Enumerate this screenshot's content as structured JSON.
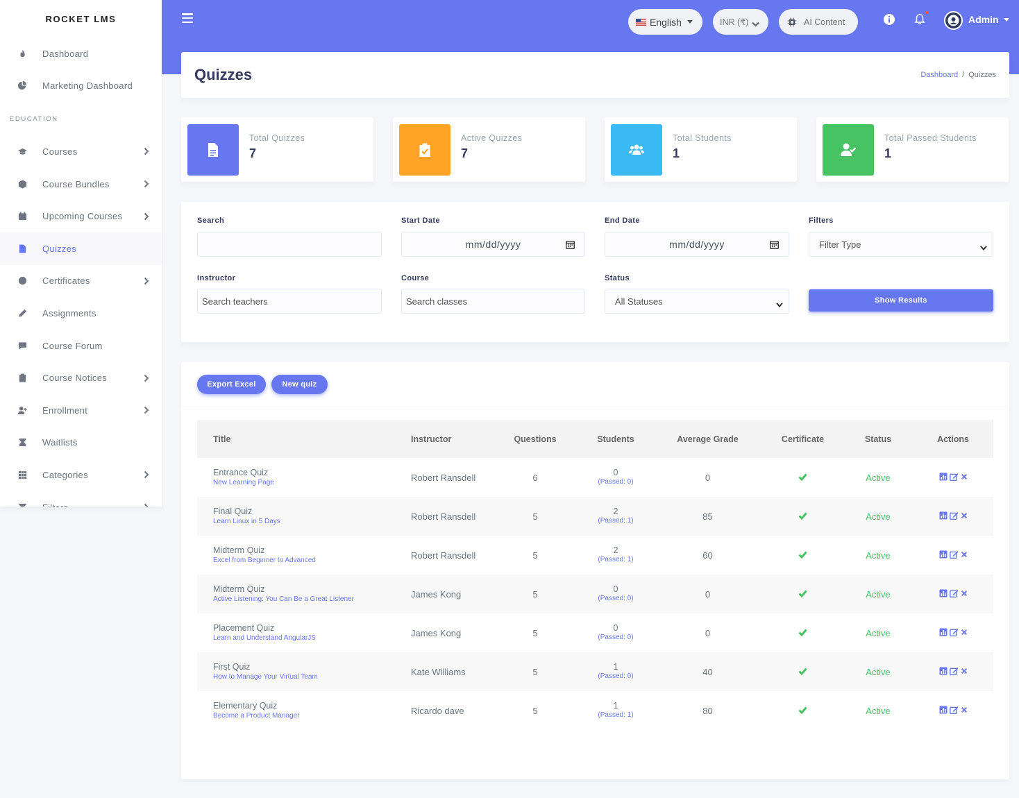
{
  "brand": "ROCKET LMS",
  "sidebar": {
    "top_items": [
      {
        "label": "Dashboard",
        "icon": "fire-icon"
      },
      {
        "label": "Marketing Dashboard",
        "icon": "chart-pie-icon"
      }
    ],
    "section_header": "EDUCATION",
    "items": [
      {
        "label": "Courses",
        "icon": "graduation-cap-icon",
        "has_children": true
      },
      {
        "label": "Course Bundles",
        "icon": "cube-icon",
        "has_children": true
      },
      {
        "label": "Upcoming Courses",
        "icon": "calendar-icon",
        "has_children": true
      },
      {
        "label": "Quizzes",
        "icon": "file-icon",
        "active": true
      },
      {
        "label": "Certificates",
        "icon": "certificate-icon",
        "has_children": true
      },
      {
        "label": "Assignments",
        "icon": "pen-icon"
      },
      {
        "label": "Course Forum",
        "icon": "comment-icon"
      },
      {
        "label": "Course Notices",
        "icon": "clipboard-check-icon",
        "has_children": true
      },
      {
        "label": "Enrollment",
        "icon": "user-plus-icon",
        "has_children": true
      },
      {
        "label": "Waitlists",
        "icon": "user-clock-icon"
      },
      {
        "label": "Categories",
        "icon": "th-icon",
        "has_children": true
      },
      {
        "label": "Filters",
        "icon": "filter-icon",
        "has_children": true
      }
    ]
  },
  "navbar": {
    "language": "English",
    "currency": "INR (₹)",
    "ai_content": "AI Content",
    "user": "Admin",
    "accent_color": "#6777ef"
  },
  "page": {
    "title": "Quizzes",
    "breadcrumb": [
      "Dashboard",
      "Quizzes"
    ]
  },
  "stats": [
    {
      "label": "Total Quizzes",
      "value": "7",
      "color": "#6777ef",
      "icon": "file-icon"
    },
    {
      "label": "Active Quizzes",
      "value": "7",
      "color": "#ffa426",
      "icon": "clipboard-check-icon"
    },
    {
      "label": "Total Students",
      "value": "1",
      "color": "#3abaf4",
      "icon": "users-icon"
    },
    {
      "label": "Total Passed Students",
      "value": "1",
      "color": "#47c363",
      "icon": "user-check-icon"
    }
  ],
  "filters": {
    "search_label": "Search",
    "search_value": "",
    "start_date_label": "Start Date",
    "start_date_value": "mm/dd/yyyy",
    "end_date_label": "End Date",
    "end_date_value": "mm/dd/yyyy",
    "filters_label": "Filters",
    "filters_value": "Filter Type",
    "instructor_label": "Instructor",
    "instructor_placeholder": "Search teachers",
    "course_label": "Course",
    "course_placeholder": "Search classes",
    "status_label": "Status",
    "status_value": "All Statuses",
    "show_results": "Show Results"
  },
  "table": {
    "export_label": "Export Excel",
    "new_label": "New quiz",
    "headers": {
      "title": "Title",
      "instructor": "Instructor",
      "questions": "Questions",
      "students": "Students",
      "grade": "Average Grade",
      "certificate": "Certificate",
      "status": "Status",
      "actions": "Actions"
    },
    "rows": [
      {
        "title": "Entrance Quiz",
        "course": "New Learning Page",
        "instructor": "Robert Ransdell",
        "questions": "6",
        "students": "0",
        "passed": "(Passed: 0)",
        "grade": "0",
        "status": "Active"
      },
      {
        "title": "Final Quiz",
        "course": "Learn Linux in 5 Days",
        "instructor": "Robert Ransdell",
        "questions": "5",
        "students": "2",
        "passed": "(Passed: 1)",
        "grade": "85",
        "status": "Active"
      },
      {
        "title": "Midterm Quiz",
        "course": "Excel from Beginner to Advanced",
        "instructor": "Robert Ransdell",
        "questions": "5",
        "students": "2",
        "passed": "(Passed: 1)",
        "grade": "60",
        "status": "Active"
      },
      {
        "title": "Midterm Quiz",
        "course": "Active Listening: You Can Be a Great Listener",
        "instructor": "James Kong",
        "questions": "5",
        "students": "0",
        "passed": "(Passed: 0)",
        "grade": "0",
        "status": "Active"
      },
      {
        "title": "Placement Quiz",
        "course": "Learn and Understand AngularJS",
        "instructor": "James Kong",
        "questions": "5",
        "students": "0",
        "passed": "(Passed: 0)",
        "grade": "0",
        "status": "Active"
      },
      {
        "title": "First Quiz",
        "course": "How to Manage Your Virtual Team",
        "instructor": "Kate Williams",
        "questions": "5",
        "students": "1",
        "passed": "(Passed: 0)",
        "grade": "40",
        "status": "Active"
      },
      {
        "title": "Elementary Quiz",
        "course": "Become a Product Manager",
        "instructor": "Ricardo dave",
        "questions": "5",
        "students": "1",
        "passed": "(Passed: 1)",
        "grade": "80",
        "status": "Active"
      }
    ]
  }
}
